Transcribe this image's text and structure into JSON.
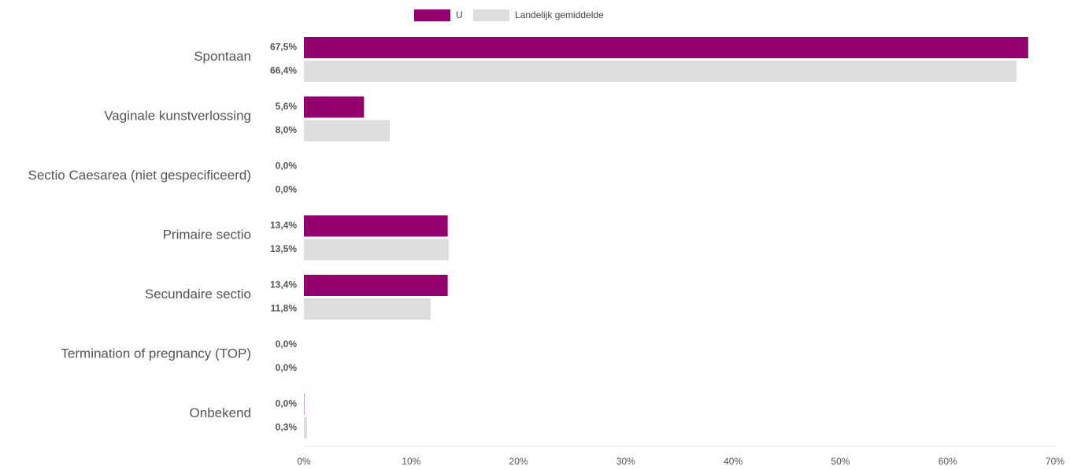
{
  "chart_data": {
    "type": "bar",
    "orientation": "horizontal",
    "categories": [
      "Spontaan",
      "Vaginale kunstverlossing",
      "Sectio Caesarea (niet gespecificeerd)",
      "Primaire sectio",
      "Secundaire sectio",
      "Termination of pregnancy (TOP)",
      "Onbekend"
    ],
    "series": [
      {
        "name": "U",
        "color": "#93006e",
        "values": [
          67.5,
          5.6,
          0.0,
          13.4,
          13.4,
          0.0,
          0.0
        ],
        "labels": [
          "67,5%",
          "5,6%",
          "0,0%",
          "13,4%",
          "13,4%",
          "0,0%",
          "0,0%"
        ]
      },
      {
        "name": "Landelijk gemiddelde",
        "color": "#dddddd",
        "values": [
          66.4,
          8.0,
          0.0,
          13.5,
          11.8,
          0.0,
          0.3
        ],
        "labels": [
          "66,4%",
          "8,0%",
          "0,0%",
          "13,5%",
          "11,8%",
          "0,0%",
          "0,3%"
        ]
      }
    ],
    "x_ticks": [
      "0%",
      "10%",
      "20%",
      "30%",
      "40%",
      "50%",
      "60%",
      "70%"
    ],
    "xlim": [
      0,
      70
    ],
    "legend_position": "top-center",
    "grid": false
  }
}
